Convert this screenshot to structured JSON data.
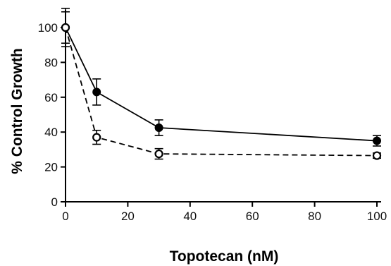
{
  "chart_data": {
    "type": "line",
    "xlabel": "Topotecan (nM)",
    "ylabel": "% Control Growth",
    "xlim": [
      0,
      100
    ],
    "ylim": [
      0,
      100
    ],
    "x_ticks": [
      0,
      20,
      40,
      60,
      80,
      100
    ],
    "y_ticks": [
      0,
      20,
      40,
      60,
      80,
      100
    ],
    "grid": false,
    "series": [
      {
        "marker": "filled-circle",
        "line_style": "solid",
        "color": "#000000",
        "points": [
          {
            "x": 0,
            "y": 100,
            "err": 9
          },
          {
            "x": 10,
            "y": 63,
            "err": 7.5
          },
          {
            "x": 30,
            "y": 42.5,
            "err": 4.5
          },
          {
            "x": 100,
            "y": 35,
            "err": 3
          }
        ]
      },
      {
        "marker": "open-circle",
        "line_style": "dashed",
        "color": "#000000",
        "points": [
          {
            "x": 0,
            "y": 100,
            "err": 11
          },
          {
            "x": 10,
            "y": 37,
            "err": 4
          },
          {
            "x": 30,
            "y": 27.5,
            "err": 3
          },
          {
            "x": 100,
            "y": 26.5,
            "err": 1.5
          }
        ]
      }
    ]
  }
}
